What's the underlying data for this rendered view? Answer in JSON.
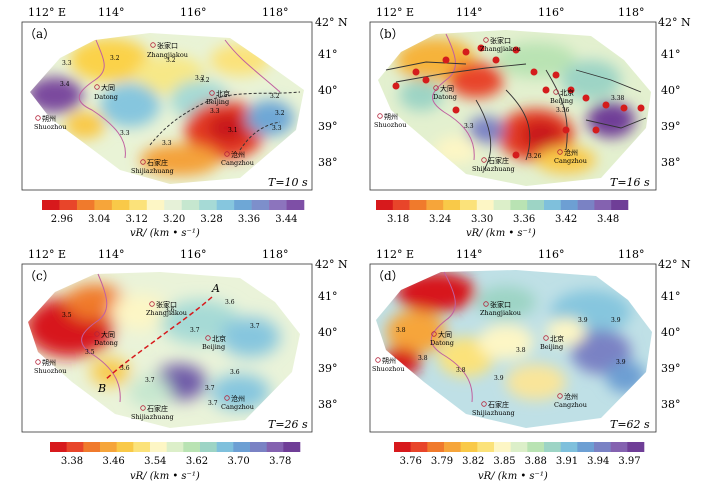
{
  "colors": {
    "ramp_a": [
      "#d7191c",
      "#e8452a",
      "#f07a2c",
      "#f6a53a",
      "#f9c948",
      "#fbe27a",
      "#fdf6c5",
      "#e6f1d8",
      "#c6e7cf",
      "#a6dad6",
      "#86c6de",
      "#6ea7d6",
      "#7d8fcb",
      "#8c74bd",
      "#7e4fa6"
    ],
    "ramp_b": [
      "#d7191c",
      "#e8452a",
      "#f07a2c",
      "#f6a53a",
      "#f9c948",
      "#fbe27a",
      "#fdf6c5",
      "#dcefc9",
      "#b9e3b3",
      "#9dd4c5",
      "#7fc0dc",
      "#6d9fd3",
      "#7a82c4",
      "#8462b0",
      "#6f3e97"
    ],
    "city_marker": "#b4233a",
    "boundary": "#c060a0",
    "fault": "#333333",
    "quake": "#d41c1c"
  },
  "panels": [
    {
      "label": "（a）",
      "period": "T=10 s",
      "lon_ticks": [
        "112° E",
        "114°",
        "116°",
        "118°"
      ],
      "lat_ticks": [
        "42° N",
        "41°",
        "40°",
        "39°",
        "38°"
      ],
      "colorbar": {
        "ticks": [
          "2.96",
          "3.04",
          "3.12",
          "3.20",
          "3.28",
          "3.36",
          "3.44"
        ],
        "unit": "vR/ (km • s⁻¹)"
      },
      "contours": [
        "3.2",
        "3.3",
        "3.2",
        "3.3",
        "3.4",
        "3.3",
        "3.2",
        "3.1",
        "3.2",
        "3.2",
        "3.3",
        "3.3",
        "3.2"
      ]
    },
    {
      "label": "（b）",
      "period": "T=16 s",
      "lon_ticks": [
        "112° E",
        "114°",
        "116°",
        "118°"
      ],
      "lat_ticks": [
        "42° N",
        "41°",
        "40°",
        "39°",
        "38°"
      ],
      "colorbar": {
        "ticks": [
          "3.18",
          "3.24",
          "3.30",
          "3.36",
          "3.42",
          "3.48"
        ],
        "unit": "vR/ (km • s⁻¹)"
      },
      "contours": [
        "3.3",
        "3.38",
        "3.36",
        "3.26"
      ]
    },
    {
      "label": "（c）",
      "period": "T=26 s",
      "lon_ticks": [
        "112° E",
        "114°",
        "116°",
        "118°"
      ],
      "lat_ticks": [
        "42° N",
        "41°",
        "40°",
        "39°",
        "38°"
      ],
      "colorbar": {
        "ticks": [
          "3.38",
          "3.46",
          "3.54",
          "3.62",
          "3.70",
          "3.78"
        ],
        "unit": "vR/ (km • s⁻¹)"
      },
      "contours": [
        "3.5",
        "3.6",
        "3.6",
        "3.7",
        "3.5",
        "3.6",
        "3.7",
        "3.7",
        "3.7",
        "3.6",
        "3.7"
      ],
      "profile": {
        "start": "A",
        "end": "B"
      }
    },
    {
      "label": "（d）",
      "period": "T=62 s",
      "lon_ticks": [
        "112° E",
        "114°",
        "116°",
        "118°"
      ],
      "lat_ticks": [
        "42° N",
        "41°",
        "40°",
        "39°",
        "38°"
      ],
      "colorbar": {
        "ticks": [
          "3.76",
          "3.79",
          "3.82",
          "3.85",
          "3.88",
          "3.91",
          "3.94",
          "3.97"
        ],
        "unit": "vR/ (km • s⁻¹)"
      },
      "contours": [
        "3.8",
        "3.8",
        "3.8",
        "3.9",
        "3.9",
        "3.9",
        "3.9",
        "3.8"
      ]
    }
  ],
  "cities": [
    {
      "cn": "张家口",
      "en": "Zhangjiakou"
    },
    {
      "cn": "大同",
      "en": "Datong"
    },
    {
      "cn": "北京",
      "en": "Beijing"
    },
    {
      "cn": "朔州",
      "en": "Shuozhou"
    },
    {
      "cn": "石家庄",
      "en": "Shijiazhuang"
    },
    {
      "cn": "沧州",
      "en": "Cangzhou"
    }
  ]
}
